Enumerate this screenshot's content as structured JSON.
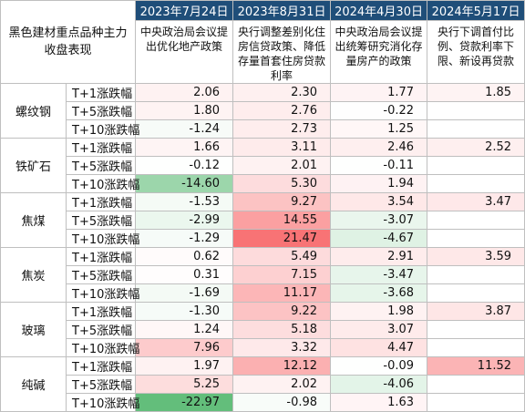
{
  "header": {
    "corner_label": "黑色建材重点品种主力收盘表现",
    "dates": [
      "2023年7月24日",
      "2023年8月31日",
      "2024年4月30日",
      "2024年5月17日"
    ],
    "events": [
      "中央政治局会议提出优化地产政策",
      "央行调整差别化住房信贷政策、降低存量首套住房贷款利率",
      "中央政治局会议提出统筹研究消化存量房产的政策",
      "央行下调首付比例、贷款利率下限、新设再贷款"
    ]
  },
  "colors": {
    "header_bg": "#1f4e79",
    "header_text": "#ffffff",
    "positive": "#f8696b",
    "negative": "#63be7b"
  },
  "products": [
    {
      "name": "螺纹钢",
      "rows": [
        {
          "metric": "T+1涨跌幅",
          "v": [
            "2.06",
            "2.30",
            "1.77",
            "1.85"
          ]
        },
        {
          "metric": "T+5涨跌幅",
          "v": [
            "1.80",
            "2.76",
            "-0.22",
            ""
          ]
        },
        {
          "metric": "T+10涨跌幅",
          "v": [
            "-1.24",
            "2.73",
            "1.25",
            ""
          ]
        }
      ]
    },
    {
      "name": "铁矿石",
      "rows": [
        {
          "metric": "T+1涨跌幅",
          "v": [
            "1.66",
            "3.11",
            "2.46",
            "2.52"
          ]
        },
        {
          "metric": "T+5涨跌幅",
          "v": [
            "-0.12",
            "2.01",
            "-0.11",
            ""
          ]
        },
        {
          "metric": "T+10涨跌幅",
          "v": [
            "-14.60",
            "5.30",
            "1.94",
            ""
          ]
        }
      ]
    },
    {
      "name": "焦煤",
      "rows": [
        {
          "metric": "T+1涨跌幅",
          "v": [
            "-1.53",
            "9.27",
            "3.54",
            "3.47"
          ]
        },
        {
          "metric": "T+5涨跌幅",
          "v": [
            "-2.99",
            "14.55",
            "-3.07",
            ""
          ]
        },
        {
          "metric": "T+10涨跌幅",
          "v": [
            "-1.29",
            "21.47",
            "-4.67",
            ""
          ]
        }
      ]
    },
    {
      "name": "焦炭",
      "rows": [
        {
          "metric": "T+1涨跌幅",
          "v": [
            "0.62",
            "5.49",
            "2.91",
            "3.59"
          ]
        },
        {
          "metric": "T+5涨跌幅",
          "v": [
            "0.31",
            "7.15",
            "-3.47",
            ""
          ]
        },
        {
          "metric": "T+10涨跌幅",
          "v": [
            "-1.69",
            "11.17",
            "-3.68",
            ""
          ]
        }
      ]
    },
    {
      "name": "玻璃",
      "rows": [
        {
          "metric": "T+1涨跌幅",
          "v": [
            "-1.30",
            "9.22",
            "1.98",
            "3.87"
          ]
        },
        {
          "metric": "T+5涨跌幅",
          "v": [
            "1.24",
            "5.18",
            "3.07",
            ""
          ]
        },
        {
          "metric": "T+10涨跌幅",
          "v": [
            "7.96",
            "3.32",
            "4.47",
            ""
          ]
        }
      ]
    },
    {
      "name": "纯碱",
      "rows": [
        {
          "metric": "T+1涨跌幅",
          "v": [
            "1.97",
            "12.12",
            "-0.09",
            "11.52"
          ]
        },
        {
          "metric": "T+5涨跌幅",
          "v": [
            "5.25",
            "2.02",
            "-4.06",
            ""
          ]
        },
        {
          "metric": "T+10涨跌幅",
          "v": [
            "-22.97",
            "-0.98",
            "1.63",
            ""
          ]
        }
      ]
    }
  ]
}
